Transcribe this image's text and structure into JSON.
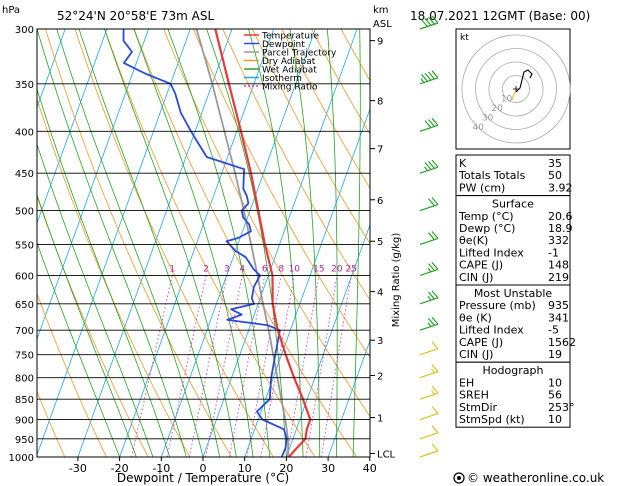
{
  "header": {
    "location": "52°24'N  20°58'E  73m  ASL",
    "datetime": "18.07.2021  12GMT  (Base: 00)",
    "left_unit": "hPa",
    "km_label": "km",
    "asl_label": "ASL"
  },
  "legend": [
    {
      "label": "Temperature",
      "color": "#e83a3a"
    },
    {
      "label": "Dewpoint",
      "color": "#2a4bd7"
    },
    {
      "label": "Parcel Trajectory",
      "color": "#9a9a9a"
    },
    {
      "label": "Dry Adiabat",
      "color": "#e89a2a"
    },
    {
      "label": "Wet Adiabat",
      "color": "#2aa02a"
    },
    {
      "label": "Isotherm",
      "color": "#22a8e0"
    },
    {
      "label": "Mixing Ratio",
      "color": "#d040c0"
    }
  ],
  "chart_data": {
    "type": "line",
    "title": "",
    "xlabel": "Dewpoint / Temperature (°C)",
    "ylabel": "",
    "right_axis_label": "Mixing Ratio (g/kg)",
    "pressure_levels": [
      300,
      350,
      400,
      450,
      500,
      550,
      600,
      650,
      700,
      750,
      800,
      850,
      900,
      950,
      1000
    ],
    "x_ticks": [
      -30,
      -20,
      -10,
      0,
      10,
      20,
      30,
      40
    ],
    "xlim": [
      -40,
      40
    ],
    "ylim": [
      1000,
      300
    ],
    "km_ticks": [
      {
        "label": "9",
        "p": 310
      },
      {
        "label": "8",
        "p": 367
      },
      {
        "label": "7",
        "p": 420
      },
      {
        "label": "6",
        "p": 485
      },
      {
        "label": "5",
        "p": 545
      },
      {
        "label": "4",
        "p": 628
      },
      {
        "label": "3",
        "p": 720
      },
      {
        "label": "2",
        "p": 795
      },
      {
        "label": "1",
        "p": 895
      },
      {
        "label": "LCL",
        "p": 990
      }
    ],
    "mixing_ratio_labels": [
      "1",
      "2",
      "3",
      "4",
      "6",
      "8",
      "10",
      "15",
      "20",
      "25"
    ],
    "mixing_ratio_values": [
      1,
      2,
      3,
      4,
      6,
      8,
      10,
      15,
      20,
      25
    ],
    "series": [
      {
        "key": "temperature",
        "points": [
          [
            1000,
            20.6
          ],
          [
            980,
            21.5
          ],
          [
            950,
            23.0
          ],
          [
            925,
            22.5
          ],
          [
            900,
            22.5
          ],
          [
            850,
            19.0
          ],
          [
            800,
            15.0
          ],
          [
            750,
            11.0
          ],
          [
            700,
            7.0
          ],
          [
            650,
            3.5
          ],
          [
            600,
            1.0
          ],
          [
            550,
            -3.5
          ],
          [
            500,
            -8.0
          ],
          [
            450,
            -13.0
          ],
          [
            400,
            -19.0
          ],
          [
            350,
            -26.0
          ],
          [
            300,
            -34.0
          ]
        ]
      },
      {
        "key": "dewpoint",
        "points": [
          [
            1000,
            18.9
          ],
          [
            975,
            19.0
          ],
          [
            950,
            18.5
          ],
          [
            925,
            17.0
          ],
          [
            900,
            11.0
          ],
          [
            880,
            9.0
          ],
          [
            850,
            11.0
          ],
          [
            800,
            9.5
          ],
          [
            750,
            8.5
          ],
          [
            700,
            7.5
          ],
          [
            690,
            4.0
          ],
          [
            680,
            -6.0
          ],
          [
            670,
            -3.0
          ],
          [
            660,
            -6.0
          ],
          [
            650,
            -1.0
          ],
          [
            640,
            -2.0
          ],
          [
            620,
            -2.5
          ],
          [
            600,
            -2.0
          ],
          [
            590,
            -4.0
          ],
          [
            570,
            -7.0
          ],
          [
            560,
            -10.0
          ],
          [
            545,
            -13.0
          ],
          [
            540,
            -10.5
          ],
          [
            530,
            -8.0
          ],
          [
            520,
            -9.0
          ],
          [
            510,
            -11.0
          ],
          [
            500,
            -12.0
          ],
          [
            490,
            -11.0
          ],
          [
            480,
            -12.0
          ],
          [
            470,
            -13.5
          ],
          [
            445,
            -15.0
          ],
          [
            430,
            -25.0
          ],
          [
            410,
            -29.0
          ],
          [
            400,
            -31.0
          ],
          [
            380,
            -35.0
          ],
          [
            360,
            -38.0
          ],
          [
            350,
            -40.0
          ],
          [
            340,
            -47.0
          ],
          [
            330,
            -53.0
          ],
          [
            320,
            -52.0
          ],
          [
            310,
            -55.0
          ],
          [
            300,
            -56.0
          ]
        ]
      },
      {
        "key": "parcel",
        "points": [
          [
            1000,
            20.6
          ],
          [
            990,
            20.1
          ],
          [
            950,
            18.8
          ],
          [
            900,
            16.5
          ],
          [
            850,
            13.8
          ],
          [
            800,
            11.0
          ],
          [
            750,
            8.0
          ],
          [
            700,
            4.8
          ],
          [
            650,
            1.2
          ],
          [
            600,
            -2.6
          ],
          [
            550,
            -6.8
          ],
          [
            500,
            -11.5
          ],
          [
            450,
            -16.8
          ],
          [
            400,
            -23.0
          ],
          [
            350,
            -30.0
          ],
          [
            300,
            -38.5
          ]
        ]
      }
    ]
  },
  "wind_barbs": [
    {
      "p": 300,
      "speed": 40
    },
    {
      "p": 350,
      "speed": 35
    },
    {
      "p": 400,
      "speed": 30
    },
    {
      "p": 450,
      "speed": 25
    },
    {
      "p": 500,
      "speed": 20
    },
    {
      "p": 550,
      "speed": 20
    },
    {
      "p": 600,
      "speed": 15
    },
    {
      "p": 650,
      "speed": 15
    },
    {
      "p": 700,
      "speed": 15
    },
    {
      "p": 750,
      "speed": 10
    },
    {
      "p": 800,
      "speed": 5
    },
    {
      "p": 850,
      "speed": 5
    },
    {
      "p": 900,
      "speed": 10
    },
    {
      "p": 950,
      "speed": 10
    },
    {
      "p": 1000,
      "speed": 10
    }
  ],
  "hodograph": {
    "label": "kt",
    "ring_labels": [
      "10",
      "20",
      "30",
      "40"
    ]
  },
  "indices": {
    "top": [
      {
        "label": "K",
        "value": "35"
      },
      {
        "label": "Totals Totals",
        "value": "50"
      },
      {
        "label": "PW (cm)",
        "value": "3.92"
      }
    ],
    "surface_title": "Surface",
    "surface": [
      {
        "label": "Temp (°C)",
        "value": "20.6"
      },
      {
        "label": "Dewp (°C)",
        "value": "18.9"
      },
      {
        "label": "θe(K)",
        "value": "332"
      },
      {
        "label": "Lifted Index",
        "value": "-1"
      },
      {
        "label": "CAPE (J)",
        "value": "148"
      },
      {
        "label": "CIN (J)",
        "value": "219"
      }
    ],
    "mu_title": "Most Unstable",
    "most_unstable": [
      {
        "label": "Pressure (mb)",
        "value": "935"
      },
      {
        "label": "θe (K)",
        "value": "341"
      },
      {
        "label": "Lifted Index",
        "value": "-5"
      },
      {
        "label": "CAPE (J)",
        "value": "1562"
      },
      {
        "label": "CIN (J)",
        "value": "19"
      }
    ],
    "hodo_title": "Hodograph",
    "hodograph": [
      {
        "label": "EH",
        "value": "10"
      },
      {
        "label": "SREH",
        "value": "56"
      },
      {
        "label": "StmDir",
        "value": "253°"
      },
      {
        "label": "StmSpd (kt)",
        "value": "10"
      }
    ]
  },
  "footer": {
    "copyright": "© weatheronline.co.uk"
  }
}
